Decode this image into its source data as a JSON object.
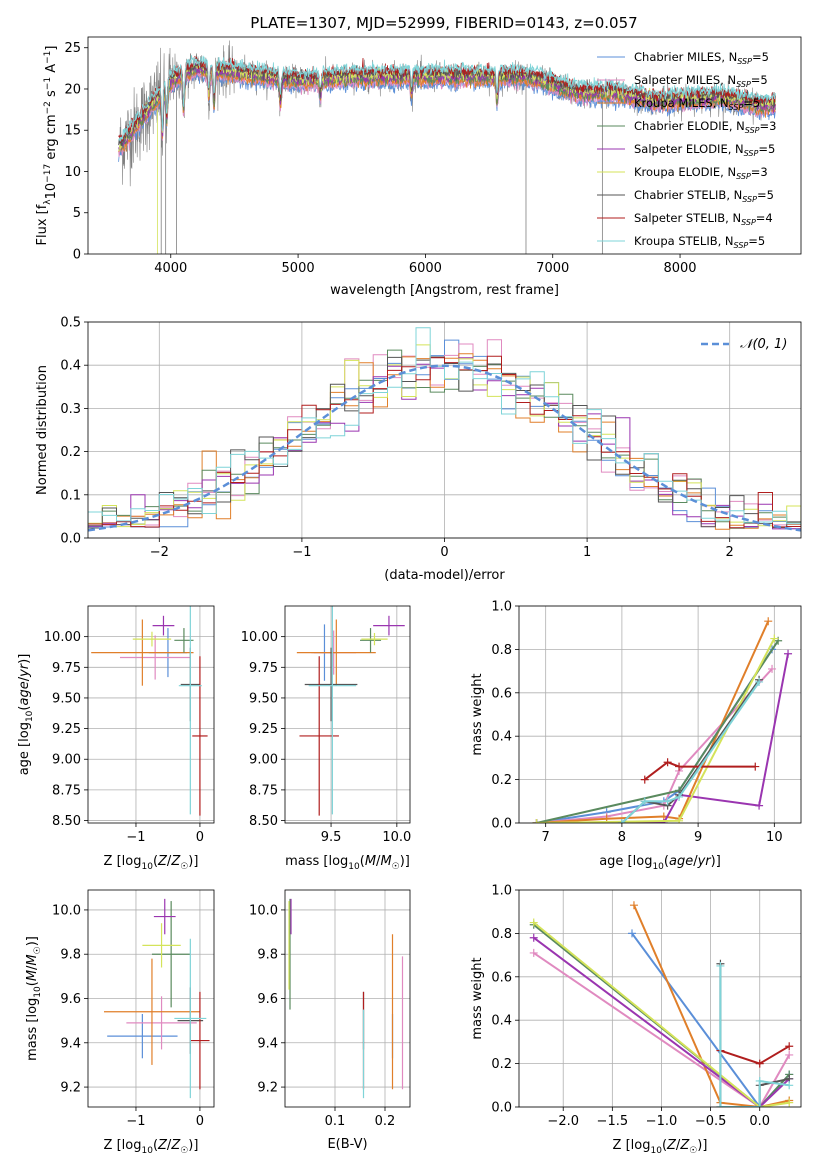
{
  "figure_title": "PLATE=1307, MJD=52999, FIBERID=0143, z=0.057",
  "colors": {
    "Chabrier MILES": "#5b8fd8",
    "Salpeter MILES": "#e08ac0",
    "Kroupa MILES": "#e07f2a",
    "Chabrier ELODIE": "#5a8a5e",
    "Salpeter ELODIE": "#9a35b0",
    "Kroupa ELODIE": "#d4e35a",
    "Chabrier STELIB": "#555555",
    "Salpeter STELIB": "#b01e1e",
    "Kroupa STELIB": "#7fd4d8",
    "data_spectrum": "#808080",
    "normal": "#5b8fd8"
  },
  "chart_data": [
    {
      "id": "spectrum",
      "type": "line",
      "title": "PLATE=1307, MJD=52999, FIBERID=0143, z=0.057",
      "xlabel": "wavelength [Angstrom, rest frame]",
      "ylabel_parts": [
        "Flux [f",
        "λ",
        "10",
        "−17",
        " erg cm",
        "−2",
        " s",
        "−1",
        " A",
        "−1",
        "]"
      ],
      "xlim": [
        3350,
        8950
      ],
      "ylim": [
        0,
        26.3
      ],
      "xticks": [
        4000,
        5000,
        6000,
        7000,
        8000
      ],
      "yticks": [
        0,
        5,
        10,
        15,
        20,
        25
      ],
      "grid": false,
      "legend_position": "upper right",
      "legend": [
        {
          "name": "Chabrier MILES, N",
          "sub": "SSP",
          "suffix": "=5",
          "color": "#5b8fd8"
        },
        {
          "name": "Salpeter MILES, N",
          "sub": "SSP",
          "suffix": "=5",
          "color": "#e08ac0"
        },
        {
          "name": "Kroupa MILES, N",
          "sub": "SSP",
          "suffix": "=5",
          "color": "#e07f2a"
        },
        {
          "name": "Chabrier ELODIE, N",
          "sub": "SSP",
          "suffix": "=3",
          "color": "#5a8a5e"
        },
        {
          "name": "Salpeter ELODIE, N",
          "sub": "SSP",
          "suffix": "=5",
          "color": "#9a35b0"
        },
        {
          "name": "Kroupa ELODIE, N",
          "sub": "SSP",
          "suffix": "=3",
          "color": "#d4e35a"
        },
        {
          "name": "Chabrier STELIB, N",
          "sub": "SSP",
          "suffix": "=5",
          "color": "#555555"
        },
        {
          "name": "Salpeter STELIB, N",
          "sub": "SSP",
          "suffix": "=4",
          "color": "#b01e1e"
        },
        {
          "name": "Kroupa STELIB, N",
          "sub": "SSP",
          "suffix": "=5",
          "color": "#7fd4d8"
        }
      ],
      "continuum": [
        [
          3600,
          13
        ],
        [
          3650,
          14
        ],
        [
          3700,
          15
        ],
        [
          3800,
          17
        ],
        [
          3900,
          19
        ],
        [
          4000,
          21
        ],
        [
          4200,
          22.5
        ],
        [
          4500,
          22
        ],
        [
          5000,
          21
        ],
        [
          5500,
          21.5
        ],
        [
          6000,
          21.5
        ],
        [
          6500,
          21.5
        ],
        [
          6800,
          21.5
        ],
        [
          7000,
          20.5
        ],
        [
          7200,
          19.5
        ],
        [
          7500,
          19.5
        ],
        [
          7800,
          18.5
        ],
        [
          8300,
          19
        ],
        [
          8500,
          18.5
        ],
        [
          8600,
          18
        ]
      ],
      "model_wavelength_range": [
        3590,
        8750
      ],
      "data_wavelength_range": [
        3600,
        8650
      ]
    },
    {
      "id": "residual_histogram",
      "type": "histogram",
      "xlabel": "(data-model)/error",
      "ylabel": "Normed distribution",
      "xlim": [
        -2.5,
        2.5
      ],
      "ylim": [
        0,
        0.5
      ],
      "xticks": [
        -2,
        -1,
        0,
        1,
        2
      ],
      "yticks": [
        0.0,
        0.1,
        0.2,
        0.3,
        0.4,
        0.5
      ],
      "grid": true,
      "legend_position": "upper right",
      "reference_curve": {
        "name": "𝒩(0, 1)",
        "mean": 0,
        "sigma": 1,
        "style": "dashed"
      },
      "bin_width": 0.1
    },
    {
      "id": "age_vs_Z",
      "type": "errorbar",
      "xlabel": "Z [log10(Z/Z☉)]",
      "ylabel": "age  [log10(age/yr)]",
      "xlim": [
        -1.75,
        0.22
      ],
      "ylim": [
        8.48,
        10.25
      ],
      "xticks": [
        -1,
        0
      ],
      "yticks": [
        8.5,
        8.75,
        9.0,
        9.25,
        9.5,
        9.75,
        10.0
      ],
      "grid": true,
      "points": [
        {
          "model": "Chabrier MILES",
          "x": -0.5,
          "xerr": 0.3,
          "y": 9.87,
          "yerr": 0.2
        },
        {
          "model": "Salpeter MILES",
          "x": -0.7,
          "xerr": 0.55,
          "y": 9.83,
          "yerr": 0.18
        },
        {
          "model": "Kroupa MILES",
          "x": -0.9,
          "xerr": 0.8,
          "y": 9.87,
          "yerr": 0.27
        },
        {
          "model": "Chabrier ELODIE",
          "x": -0.25,
          "xerr": 0.15,
          "y": 9.97,
          "yerr": 0.1
        },
        {
          "model": "Salpeter ELODIE",
          "x": -0.57,
          "xerr": 0.17,
          "y": 10.09,
          "yerr": 0.08
        },
        {
          "model": "Kroupa ELODIE",
          "x": -0.75,
          "xerr": 0.3,
          "y": 9.98,
          "yerr": 0.06
        },
        {
          "model": "Chabrier STELIB",
          "x": -0.15,
          "xerr": 0.15,
          "y": 9.61,
          "yerr": 0.3
        },
        {
          "model": "Salpeter STELIB",
          "x": 0.0,
          "xerr": 0.12,
          "y": 9.19,
          "yerr": 0.65
        },
        {
          "model": "Kroupa STELIB",
          "x": -0.15,
          "xerr": 0.18,
          "y": 9.6,
          "yerr": 1.05
        }
      ]
    },
    {
      "id": "age_vs_mass",
      "type": "errorbar",
      "xlabel": "mass [log10(M/M☉)]",
      "ylabel": "",
      "xlim": [
        9.15,
        10.1
      ],
      "ylim": [
        8.48,
        10.25
      ],
      "xticks": [
        9.5,
        10.0
      ],
      "yticks": [
        8.5,
        8.75,
        9.0,
        9.25,
        9.5,
        9.75,
        10.0
      ],
      "grid": true,
      "points": [
        {
          "model": "Chabrier MILES",
          "x": 9.45,
          "xerr": 0.08,
          "y": 9.87,
          "yerr": 0.23
        },
        {
          "model": "Salpeter MILES",
          "x": 9.52,
          "xerr": 0.17,
          "y": 9.87,
          "yerr": 0.18
        },
        {
          "model": "Kroupa MILES",
          "x": 9.54,
          "xerr": 0.3,
          "y": 9.87,
          "yerr": 0.27
        },
        {
          "model": "Chabrier ELODIE",
          "x": 9.8,
          "xerr": 0.08,
          "y": 9.97,
          "yerr": 0.1
        },
        {
          "model": "Salpeter ELODIE",
          "x": 9.94,
          "xerr": 0.12,
          "y": 10.09,
          "yerr": 0.08
        },
        {
          "model": "Kroupa ELODIE",
          "x": 9.83,
          "xerr": 0.1,
          "y": 9.98,
          "yerr": 0.05
        },
        {
          "model": "Chabrier STELIB",
          "x": 9.5,
          "xerr": 0.2,
          "y": 9.61,
          "yerr": 0.3
        },
        {
          "model": "Salpeter STELIB",
          "x": 9.41,
          "xerr": 0.15,
          "y": 9.19,
          "yerr": 0.65
        },
        {
          "model": "Kroupa STELIB",
          "x": 9.51,
          "xerr": 0.18,
          "y": 9.6,
          "yerr": 1.05
        }
      ]
    },
    {
      "id": "massweight_vs_age",
      "type": "line",
      "xlabel": "age  [log10(age/yr)]",
      "ylabel": "mass weight",
      "xlim": [
        6.65,
        10.35
      ],
      "ylim": [
        0,
        1.0
      ],
      "xticks": [
        7,
        8,
        9,
        10
      ],
      "yticks": [
        0.0,
        0.2,
        0.4,
        0.6,
        0.8,
        1.0
      ],
      "grid": true,
      "series": [
        {
          "model": "Chabrier MILES",
          "x": [
            6.88,
            7.8,
            8.55,
            8.75,
            9.97
          ],
          "y": [
            0.0,
            0.05,
            0.1,
            0.15,
            0.8
          ]
        },
        {
          "model": "Salpeter MILES",
          "x": [
            6.88,
            7.8,
            8.55,
            8.75,
            9.97
          ],
          "y": [
            0.0,
            0.03,
            0.08,
            0.24,
            0.71
          ]
        },
        {
          "model": "Kroupa MILES",
          "x": [
            6.88,
            7.8,
            8.55,
            8.75,
            9.92
          ],
          "y": [
            0.0,
            0.02,
            0.03,
            0.02,
            0.93
          ]
        },
        {
          "model": "Chabrier ELODIE",
          "x": [
            6.88,
            8.75,
            10.05
          ],
          "y": [
            0.0,
            0.15,
            0.84
          ]
        },
        {
          "model": "Salpeter ELODIE",
          "x": [
            6.88,
            8.55,
            8.75,
            9.8,
            10.18
          ],
          "y": [
            0.0,
            0.0,
            0.13,
            0.08,
            0.78
          ]
        },
        {
          "model": "Kroupa ELODIE",
          "x": [
            6.88,
            8.75,
            10.0
          ],
          "y": [
            0.0,
            0.01,
            0.85
          ]
        },
        {
          "model": "Chabrier STELIB",
          "x": [
            8.0,
            8.3,
            8.6,
            8.75,
            9.8
          ],
          "y": [
            0.0,
            0.1,
            0.08,
            0.13,
            0.66
          ]
        },
        {
          "model": "Salpeter STELIB",
          "x": [
            8.3,
            8.6,
            8.75,
            9.75
          ],
          "y": [
            0.2,
            0.28,
            0.26,
            0.26
          ]
        },
        {
          "model": "Kroupa STELIB",
          "x": [
            8.0,
            8.3,
            8.6,
            8.75,
            9.8
          ],
          "y": [
            0.0,
            0.1,
            0.1,
            0.12,
            0.65
          ]
        }
      ]
    },
    {
      "id": "mass_vs_Z",
      "type": "errorbar",
      "xlabel": "Z [log10(Z/Z☉)]",
      "ylabel": "mass [log10(M/M☉)]",
      "xlim": [
        -1.75,
        0.22
      ],
      "ylim": [
        9.11,
        10.09
      ],
      "xticks": [
        -1,
        0
      ],
      "yticks": [
        9.2,
        9.4,
        9.6,
        9.8,
        10.0
      ],
      "grid": true,
      "points": [
        {
          "model": "Chabrier MILES",
          "x": -0.9,
          "xerr": 0.55,
          "y": 9.43,
          "yerr": 0.1
        },
        {
          "model": "Salpeter MILES",
          "x": -0.6,
          "xerr": 0.55,
          "y": 9.49,
          "yerr": 0.12
        },
        {
          "model": "Kroupa MILES",
          "x": -0.75,
          "xerr": 0.75,
          "y": 9.54,
          "yerr": 0.24
        },
        {
          "model": "Chabrier ELODIE",
          "x": -0.45,
          "xerr": 0.3,
          "y": 9.8,
          "yerr": 0.24
        },
        {
          "model": "Salpeter ELODIE",
          "x": -0.55,
          "xerr": 0.17,
          "y": 9.97,
          "yerr": 0.08
        },
        {
          "model": "Kroupa ELODIE",
          "x": -0.6,
          "xerr": 0.3,
          "y": 9.84,
          "yerr": 0.1
        },
        {
          "model": "Chabrier STELIB",
          "x": -0.15,
          "xerr": 0.2,
          "y": 9.5,
          "yerr": 0.15
        },
        {
          "model": "Salpeter STELIB",
          "x": 0.0,
          "xerr": 0.15,
          "y": 9.41,
          "yerr": 0.22
        },
        {
          "model": "Kroupa STELIB",
          "x": -0.15,
          "xerr": 0.25,
          "y": 9.51,
          "yerr": 0.36
        }
      ]
    },
    {
      "id": "mass_vs_ebv",
      "type": "errorbar",
      "xlabel": "E(B-V)",
      "ylabel": "",
      "xlim": [
        0.0,
        0.25
      ],
      "ylim": [
        9.11,
        10.09
      ],
      "xticks": [
        0.1,
        0.2
      ],
      "yticks": [
        9.2,
        9.4,
        9.6,
        9.8,
        10.0
      ],
      "grid": true,
      "points": [
        {
          "model": "Chabrier MILES",
          "x": 0.215,
          "y": 9.43,
          "yerr": 0.1
        },
        {
          "model": "Salpeter MILES",
          "x": 0.235,
          "y": 9.49,
          "yerr": 0.3
        },
        {
          "model": "Kroupa MILES",
          "x": 0.215,
          "y": 9.54,
          "yerr": 0.35
        },
        {
          "model": "Chabrier ELODIE",
          "x": 0.01,
          "y": 9.8,
          "yerr": 0.25
        },
        {
          "model": "Salpeter ELODIE",
          "x": 0.012,
          "y": 9.97,
          "yerr": 0.08
        },
        {
          "model": "Kroupa ELODIE",
          "x": 0.008,
          "y": 9.84,
          "yerr": 0.2
        },
        {
          "model": "Chabrier STELIB",
          "x": 0.157,
          "y": 9.5,
          "yerr": 0.13
        },
        {
          "model": "Salpeter STELIB",
          "x": 0.157,
          "y": 9.41,
          "yerr": 0.22
        },
        {
          "model": "Kroupa STELIB",
          "x": 0.157,
          "y": 9.35,
          "yerr": 0.2
        }
      ]
    },
    {
      "id": "massweight_vs_Z",
      "type": "line",
      "xlabel": "Z [log10(Z/Z☉)]",
      "ylabel": "mass weight",
      "xlim": [
        -2.45,
        0.42
      ],
      "ylim": [
        0,
        1.0
      ],
      "xticks": [
        -2.0,
        -1.5,
        -1.0,
        -0.5,
        0.0
      ],
      "yticks": [
        0.0,
        0.2,
        0.4,
        0.6,
        0.8,
        1.0
      ],
      "grid": true,
      "series": [
        {
          "model": "Chabrier MILES",
          "x": [
            -1.3,
            0.0,
            0.3
          ],
          "y": [
            0.8,
            0.0,
            0.15
          ]
        },
        {
          "model": "Salpeter MILES",
          "x": [
            -2.3,
            0.0,
            0.3
          ],
          "y": [
            0.71,
            0.0,
            0.24
          ]
        },
        {
          "model": "Kroupa MILES",
          "x": [
            -1.28,
            -0.4,
            0.0,
            0.3
          ],
          "y": [
            0.93,
            0.02,
            0.0,
            0.03
          ]
        },
        {
          "model": "Chabrier ELODIE",
          "x": [
            -2.3,
            0.0,
            0.3
          ],
          "y": [
            0.84,
            0.0,
            0.15
          ]
        },
        {
          "model": "Salpeter ELODIE",
          "x": [
            -2.3,
            0.0,
            0.3
          ],
          "y": [
            0.78,
            0.0,
            0.13
          ]
        },
        {
          "model": "Kroupa ELODIE",
          "x": [
            -2.3,
            0.0,
            0.3
          ],
          "y": [
            0.85,
            0.0,
            0.02
          ]
        },
        {
          "model": "Chabrier STELIB",
          "x": [
            -0.4,
            -0.4,
            0.0,
            0.0,
            0.3
          ],
          "y": [
            0.66,
            0.0,
            0.0,
            0.1,
            0.13
          ]
        },
        {
          "model": "Salpeter STELIB",
          "x": [
            -0.4,
            0.0,
            0.3
          ],
          "y": [
            0.26,
            0.2,
            0.28
          ]
        },
        {
          "model": "Kroupa STELIB",
          "x": [
            -0.4,
            -0.4,
            0.0,
            0.0,
            0.3
          ],
          "y": [
            0.65,
            0.0,
            0.0,
            0.12,
            0.1
          ]
        }
      ]
    }
  ]
}
